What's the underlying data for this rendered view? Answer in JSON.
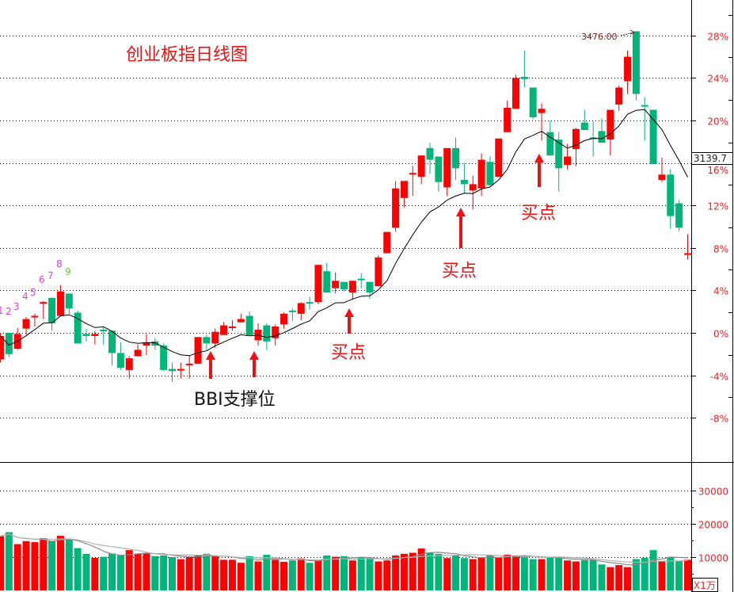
{
  "chart_data": {
    "type": "candlestick",
    "title": "创业板指日线图",
    "y_axis": {
      "unit": "%",
      "ticks": [
        "28%",
        "24%",
        "20%",
        "16%",
        "12%",
        "8%",
        "4%",
        "0%",
        "-4%",
        "-8%"
      ],
      "tick_values": [
        28,
        24,
        20,
        16,
        12,
        8,
        4,
        0,
        -4,
        -8
      ],
      "range": [
        -12,
        31
      ]
    },
    "grid": true,
    "colors": {
      "up": "#ff0000",
      "down": "#00b57a",
      "axis_label": "#e8222a",
      "bbi_line": "#000000",
      "td_count": "#e040e0",
      "td_nine": "#66cc33"
    },
    "candles_ohlc_pct": [
      [
        -2.5,
        0,
        -2.8,
        -0.3
      ],
      [
        0,
        0,
        -2.3,
        -2.0
      ],
      [
        -1.5,
        0.45,
        -1.6,
        -0.1
      ],
      [
        0.4,
        1.5,
        -0.2,
        1.3
      ],
      [
        1.5,
        1.8,
        0.6,
        1.6
      ],
      [
        2.8,
        3.0,
        1.3,
        2.9
      ],
      [
        3.3,
        3.3,
        0.2,
        0.9
      ],
      [
        1.6,
        4.5,
        1.6,
        3.9
      ],
      [
        3.7,
        3.7,
        1.8,
        2.3
      ],
      [
        1.9,
        2.1,
        -1.0,
        -1.0
      ],
      [
        -0.1,
        0.4,
        -0.8,
        -0.3
      ],
      [
        -0.3,
        0.2,
        -1.1,
        -0.1
      ],
      [
        0.3,
        0.5,
        -1.1,
        0.2
      ],
      [
        0.2,
        0.2,
        -3.1,
        -1.9
      ],
      [
        -1.9,
        -0.9,
        -3.5,
        -3.3
      ],
      [
        -3.5,
        -2.2,
        -4.3,
        -2.4
      ],
      [
        -2.2,
        -1.1,
        -2.2,
        -1.6
      ],
      [
        -1.2,
        -0.1,
        -2.1,
        -0.9
      ],
      [
        -0.8,
        -0.5,
        -1.6,
        -1.2
      ],
      [
        -1.2,
        -1.0,
        -3.6,
        -3.5
      ],
      [
        -3.4,
        -2.8,
        -4.6,
        -3.6
      ],
      [
        -3.5,
        -2.8,
        -4.3,
        -3.4
      ],
      [
        -3.0,
        -2.1,
        -4.3,
        -2.9
      ],
      [
        -2.9,
        -0.4,
        -2.9,
        -0.4
      ],
      [
        -0.4,
        -0.2,
        -1.6,
        -1.0
      ],
      [
        -1.0,
        0.4,
        -1.4,
        0.1
      ],
      [
        -0.2,
        1.0,
        0,
        0.7
      ],
      [
        0.5,
        1.2,
        0.2,
        0.6
      ],
      [
        1.0,
        1.8,
        1.0,
        1.3
      ],
      [
        1.6,
        2.0,
        -0.3,
        -0.3
      ],
      [
        -0.7,
        0.9,
        -1.2,
        0.3
      ],
      [
        0.7,
        0.9,
        -1.6,
        -0.8
      ],
      [
        -0.5,
        0.8,
        -1.2,
        0.6
      ],
      [
        0.8,
        1.9,
        0.4,
        1.8
      ],
      [
        2.1,
        2.3,
        1.1,
        2.0
      ],
      [
        1.8,
        2.9,
        1.2,
        2.8
      ],
      [
        2.9,
        3.4,
        2.2,
        2.8
      ],
      [
        2.9,
        6.4,
        2.7,
        6.4
      ],
      [
        5.8,
        6.6,
        3.8,
        3.8
      ],
      [
        4.2,
        5.7,
        3.7,
        4.9
      ],
      [
        4.8,
        4.8,
        3.9,
        4.1
      ],
      [
        3.8,
        4.9,
        3.1,
        4.9
      ],
      [
        5.1,
        5.6,
        4.2,
        5.0
      ],
      [
        4.8,
        4.8,
        3.2,
        3.8
      ],
      [
        4.4,
        7.3,
        4.4,
        7.1
      ],
      [
        7.5,
        9.5,
        7.5,
        9.5
      ],
      [
        9.9,
        14.3,
        9.5,
        13.6
      ],
      [
        12.7,
        14.3,
        11.8,
        14.3
      ],
      [
        15.0,
        15.7,
        12.9,
        15.05
      ],
      [
        14.7,
        16.7,
        14.0,
        16.7
      ],
      [
        17.4,
        17.9,
        15.0,
        16.3
      ],
      [
        16.6,
        16.6,
        13.3,
        14.2
      ],
      [
        13.7,
        17.4,
        12.9,
        17.4
      ],
      [
        17.4,
        18.4,
        14.4,
        15.5
      ],
      [
        14.4,
        16.0,
        13.2,
        14.0
      ],
      [
        13.4,
        14.8,
        11.6,
        14.0
      ],
      [
        13.6,
        16.9,
        12.9,
        16.3
      ],
      [
        16.1,
        16.6,
        13.9,
        13.9
      ],
      [
        14.7,
        18.3,
        14.7,
        18.3
      ],
      [
        18.9,
        21.9,
        18.9,
        21.2
      ],
      [
        21.1,
        24.3,
        21.1,
        24.0
      ],
      [
        24.1,
        26.6,
        23.1,
        23.9
      ],
      [
        23.1,
        23.1,
        20.1,
        20.3
      ],
      [
        20.7,
        21.6,
        18.1,
        21.1
      ],
      [
        18.9,
        20.0,
        16.7,
        16.7
      ],
      [
        18.2,
        18.9,
        13.3,
        15.5
      ],
      [
        15.8,
        17.8,
        15.4,
        16.6
      ],
      [
        17.3,
        19.3,
        15.7,
        19.2
      ],
      [
        19.8,
        21.0,
        19.1,
        19.1
      ],
      [
        18.4,
        19.9,
        16.6,
        18.3
      ],
      [
        19.0,
        20.2,
        17.9,
        17.9
      ],
      [
        18.2,
        21.0,
        16.7,
        21.0
      ],
      [
        21.5,
        23.3,
        20.9,
        23.1
      ],
      [
        23.7,
        26.6,
        22.5,
        26.0
      ],
      [
        28.4,
        28.4,
        21.9,
        22.5
      ],
      [
        21.45,
        22.2,
        18.1,
        21.35
      ],
      [
        21.0,
        21.0,
        15.9,
        15.9
      ],
      [
        14.4,
        16.5,
        14.2,
        14.9
      ],
      [
        14.9,
        15.4,
        9.8,
        11.0
      ],
      [
        12.2,
        12.5,
        9.6,
        9.9
      ],
      [
        7.4,
        9.3,
        6.9,
        7.5
      ]
    ],
    "volume": {
      "unit_label": "X1万",
      "ticks": [
        "30000",
        "20000",
        "10000"
      ],
      "tick_values": [
        30000,
        20000,
        10000
      ],
      "values": [
        16300,
        17500,
        13900,
        14800,
        14500,
        15700,
        14800,
        16400,
        15300,
        12700,
        11000,
        9800,
        10100,
        11100,
        10700,
        12100,
        11000,
        11100,
        10300,
        10500,
        10000,
        9400,
        10200,
        10700,
        11000,
        10300,
        9200,
        9200,
        8300,
        10300,
        8700,
        10700,
        9200,
        8600,
        9000,
        9600,
        8300,
        9000,
        10500,
        10100,
        10300,
        9000,
        10000,
        9800,
        8700,
        9000,
        10500,
        11000,
        11300,
        12600,
        11400,
        11000,
        9700,
        10500,
        9700,
        9400,
        9800,
        10700,
        9800,
        10700,
        10500,
        10500,
        9400,
        9400,
        9800,
        10000,
        9000,
        8700,
        9100,
        9100,
        7800,
        7000,
        7600,
        7000,
        9400,
        9800,
        12100,
        8800,
        10000,
        8800,
        9200
      ]
    },
    "high_marker": "3476.00",
    "last_price": "3139.7",
    "td_sequence": [
      "1",
      "2",
      "3",
      "4",
      "5",
      "6",
      "7",
      "8",
      "9"
    ],
    "annotations": {
      "support": "BBI支撑位",
      "buy_point": "买点"
    }
  }
}
